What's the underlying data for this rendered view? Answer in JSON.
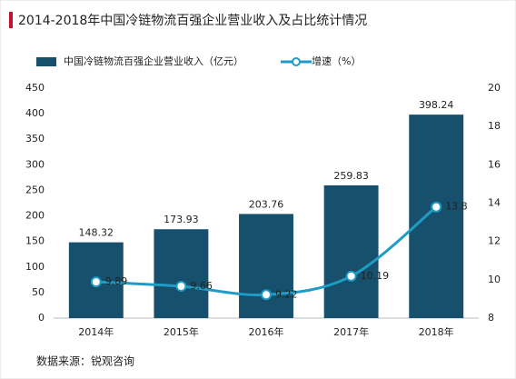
{
  "chart_data": {
    "type": "bar_line",
    "title": "2014-2018年中国冷链物流百强企业营业收入及占比统计情况",
    "categories": [
      "2014年",
      "2015年",
      "2016年",
      "2017年",
      "2018年"
    ],
    "series": [
      {
        "name": "中国冷链物流百强企业营业收入（亿元）",
        "type": "bar",
        "color": "#16506c",
        "values": [
          148.32,
          173.93,
          203.76,
          259.83,
          398.24
        ]
      },
      {
        "name": "增速（%）",
        "type": "line",
        "axis": "y2",
        "color": "#1f9cc6",
        "values": [
          9.89,
          9.66,
          9.22,
          10.19,
          13.8
        ]
      }
    ],
    "ylim": [
      0,
      450
    ],
    "yticks": [
      0,
      50,
      100,
      150,
      200,
      250,
      300,
      350,
      400,
      450
    ],
    "y2lim": [
      8,
      20
    ],
    "y2ticks": [
      8,
      10,
      12,
      14,
      16,
      18,
      20
    ],
    "grid": false,
    "source": "数据来源：锐观咨询"
  }
}
